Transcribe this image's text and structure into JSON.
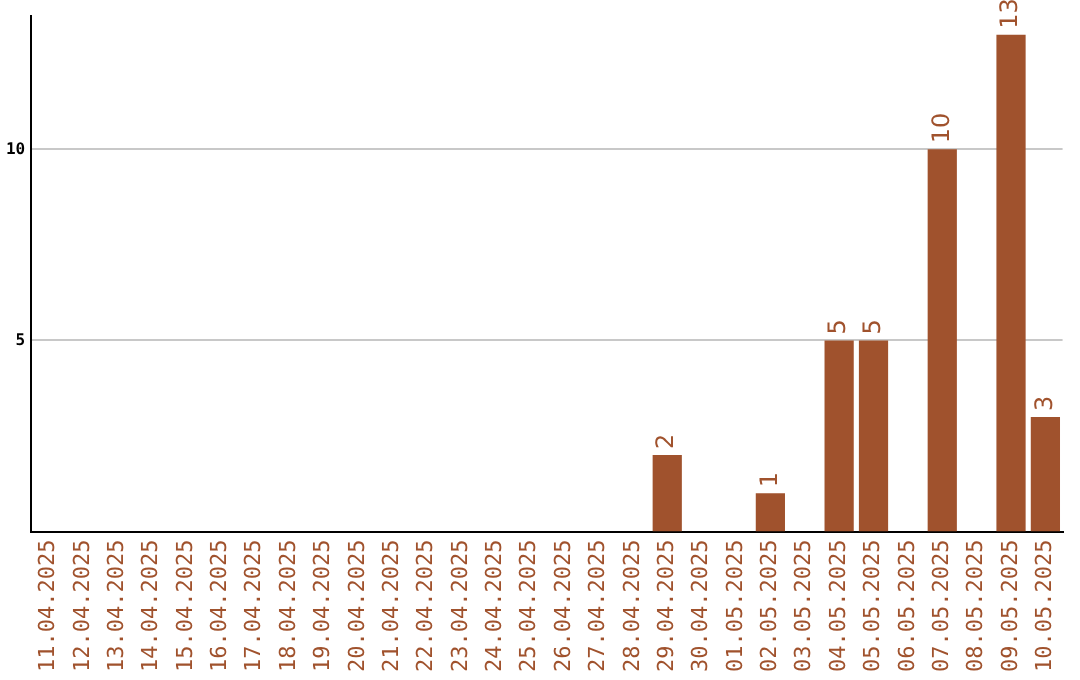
{
  "chart_data": {
    "type": "bar",
    "categories": [
      "11.04.2025",
      "12.04.2025",
      "13.04.2025",
      "14.04.2025",
      "15.04.2025",
      "16.04.2025",
      "17.04.2025",
      "18.04.2025",
      "19.04.2025",
      "20.04.2025",
      "21.04.2025",
      "22.04.2025",
      "23.04.2025",
      "24.04.2025",
      "25.04.2025",
      "26.04.2025",
      "27.04.2025",
      "28.04.2025",
      "29.04.2025",
      "30.04.2025",
      "01.05.2025",
      "02.05.2025",
      "03.05.2025",
      "04.05.2025",
      "05.05.2025",
      "06.05.2025",
      "07.05.2025",
      "08.05.2025",
      "09.05.2025",
      "10.05.2025"
    ],
    "values": [
      0,
      0,
      0,
      0,
      0,
      0,
      0,
      0,
      0,
      0,
      0,
      0,
      0,
      0,
      0,
      0,
      0,
      0,
      2,
      0,
      0,
      1,
      0,
      5,
      5,
      0,
      10,
      0,
      13,
      3
    ],
    "value_labels": [
      null,
      null,
      null,
      null,
      null,
      null,
      null,
      null,
      null,
      null,
      null,
      null,
      null,
      null,
      null,
      null,
      null,
      null,
      "2",
      null,
      null,
      "1",
      null,
      "5",
      "5",
      null,
      "10",
      null,
      "13",
      "3"
    ],
    "color": "#a0522d",
    "ylim": [
      0,
      13.5
    ],
    "yticks": [
      5,
      10
    ],
    "grid": "y",
    "legend": false
  }
}
